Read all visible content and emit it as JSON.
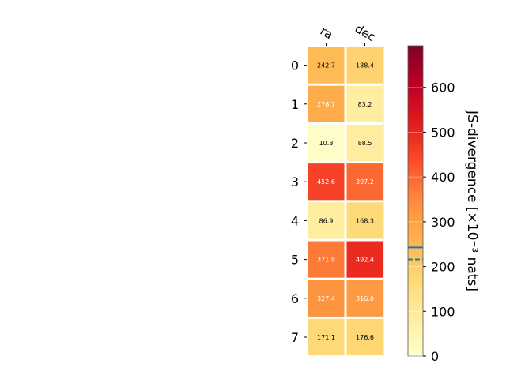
{
  "chart_data": {
    "type": "heatmap",
    "columns": [
      "ra",
      "dec"
    ],
    "rows": [
      "0",
      "1",
      "2",
      "3",
      "4",
      "5",
      "6",
      "7"
    ],
    "values": [
      [
        242.7,
        188.4
      ],
      [
        276.7,
        83.2
      ],
      [
        10.3,
        88.5
      ],
      [
        452.6,
        397.2
      ],
      [
        86.9,
        168.3
      ],
      [
        371.8,
        492.4
      ],
      [
        327.4,
        316.0
      ],
      [
        171.1,
        176.6
      ]
    ],
    "value_labels": [
      [
        "242.7",
        "188.4"
      ],
      [
        "276.7",
        "83.2"
      ],
      [
        "10.3",
        "88.5"
      ],
      [
        "452.6",
        "397.2"
      ],
      [
        "86.9",
        "168.3"
      ],
      [
        "371.8",
        "492.4"
      ],
      [
        "327.4",
        "316.0"
      ],
      [
        "171.1",
        "176.6"
      ]
    ],
    "colorbar": {
      "label": "JS-divergence [×10⁻³ nats]",
      "range": [
        0,
        693
      ],
      "ticks": [
        0,
        100,
        200,
        300,
        400,
        500,
        600
      ],
      "tick_labels": [
        "0",
        "100",
        "200",
        "300",
        "400",
        "500",
        "600"
      ],
      "colormap": "YlOrRd",
      "solid_marker": 242.7,
      "dashed_marker": 216.0
    },
    "colors": {
      "marker": "#1f77b4",
      "text_dark": "#000000",
      "text_light": "#ffffff"
    }
  }
}
